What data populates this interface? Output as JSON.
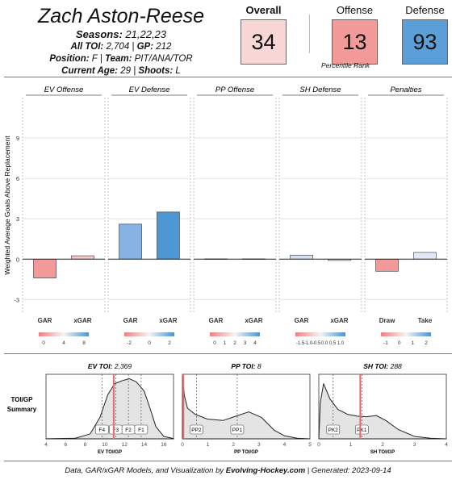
{
  "header": {
    "player": "Zach Aston-Reese",
    "seasons_label": "Seasons:",
    "seasons": "21,22,23",
    "toi_label": "All TOI:",
    "toi": "2,704",
    "gp_label": "GP:",
    "gp": "212",
    "position_label": "Position:",
    "position": "F",
    "team_label": "Team:",
    "team": "PIT/ANA/TOR",
    "age_label": "Current Age:",
    "age": "29",
    "shoots_label": "Shoots:",
    "shoots": "L"
  },
  "percentiles": {
    "overall_label": "Overall",
    "overall": "34",
    "overall_color": "#f8d7d6",
    "offense_label": "Offense",
    "offense": "13",
    "offense_color": "#f29a9a",
    "defense_label": "Defense",
    "defense": "93",
    "defense_color": "#5a9fd7",
    "note": "Percentile Rank"
  },
  "chart_data": [
    {
      "type": "bar",
      "ylabel": "Weighted Average Goals Above Replacement",
      "ylim": [
        -4,
        12
      ],
      "yticks": [
        -3,
        0,
        3,
        6,
        9
      ],
      "panels": [
        {
          "title": "EV Offense",
          "categories": [
            "GAR",
            "xGAR"
          ],
          "values": [
            -1.4,
            0.25
          ],
          "colors": [
            "#f29a9a",
            "#f7c9c9"
          ],
          "legend_ticks": [
            "0",
            "4",
            "8"
          ]
        },
        {
          "title": "EV Defense",
          "categories": [
            "GAR",
            "xGAR"
          ],
          "values": [
            2.6,
            3.5
          ],
          "colors": [
            "#86b3e3",
            "#4d97d5"
          ],
          "legend_ticks": [
            "-2",
            "0",
            "2"
          ]
        },
        {
          "title": "PP Offense",
          "categories": [
            "GAR",
            "xGAR"
          ],
          "values": [
            0.02,
            0.02
          ],
          "colors": [
            "#f5f5f5",
            "#f5f5f5"
          ],
          "legend_ticks": [
            "0",
            "1",
            "2",
            "3",
            "4"
          ]
        },
        {
          "title": "SH Defense",
          "categories": [
            "GAR",
            "xGAR"
          ],
          "values": [
            0.3,
            -0.1
          ],
          "colors": [
            "#d4e2f2",
            "#f3f3f3"
          ],
          "legend_ticks": [
            "-1.5",
            "-1.0",
            "-0.5",
            "0.0",
            "0.5",
            "1.0"
          ]
        },
        {
          "title": "Penalties",
          "categories": [
            "Draw",
            "Take"
          ],
          "values": [
            -0.9,
            0.5
          ],
          "colors": [
            "#f29a9a",
            "#e2e8f5"
          ],
          "legend_ticks": [
            "-1",
            "0",
            "1",
            "2"
          ]
        }
      ]
    },
    {
      "type": "area",
      "ylabel_line1": "TOI/GP",
      "ylabel_line2": "Summary",
      "panels": [
        {
          "title_label": "EV TOI:",
          "title_value": "2,369",
          "xlabel": "EV TOI/GP",
          "xlim": [
            4,
            17
          ],
          "xticks": [
            4,
            6,
            8,
            10,
            12,
            14,
            16
          ],
          "player_value": 10.9,
          "markers": [
            {
              "label": "F4",
              "x": 9.7
            },
            {
              "label": "F3",
              "x": 11.1
            },
            {
              "label": "F2",
              "x": 12.4
            },
            {
              "label": "F1",
              "x": 13.7
            }
          ]
        },
        {
          "title_label": "PP TOI:",
          "title_value": "8",
          "xlabel": "PP TOI/GP",
          "xlim": [
            0,
            5
          ],
          "xticks": [
            0,
            1,
            2,
            3,
            4,
            5
          ],
          "player_value": 0.04,
          "markers": [
            {
              "label": "PP2",
              "x": 0.55
            },
            {
              "label": "PP1",
              "x": 2.15
            }
          ]
        },
        {
          "title_label": "SH TOI:",
          "title_value": "288",
          "xlabel": "SH TOI/GP",
          "xlim": [
            0,
            4
          ],
          "xticks": [
            0,
            1,
            2,
            3,
            4
          ],
          "player_value": 1.3,
          "markers": [
            {
              "label": "PK2",
              "x": 0.45
            },
            {
              "label": "PK1",
              "x": 1.35
            }
          ]
        }
      ]
    }
  ],
  "footer": {
    "prefix": "Data, GAR/xGAR Models, and Visualization by",
    "brand": "Evolving-Hockey.com",
    "suffix": "| Generated:  2023-09-14"
  }
}
